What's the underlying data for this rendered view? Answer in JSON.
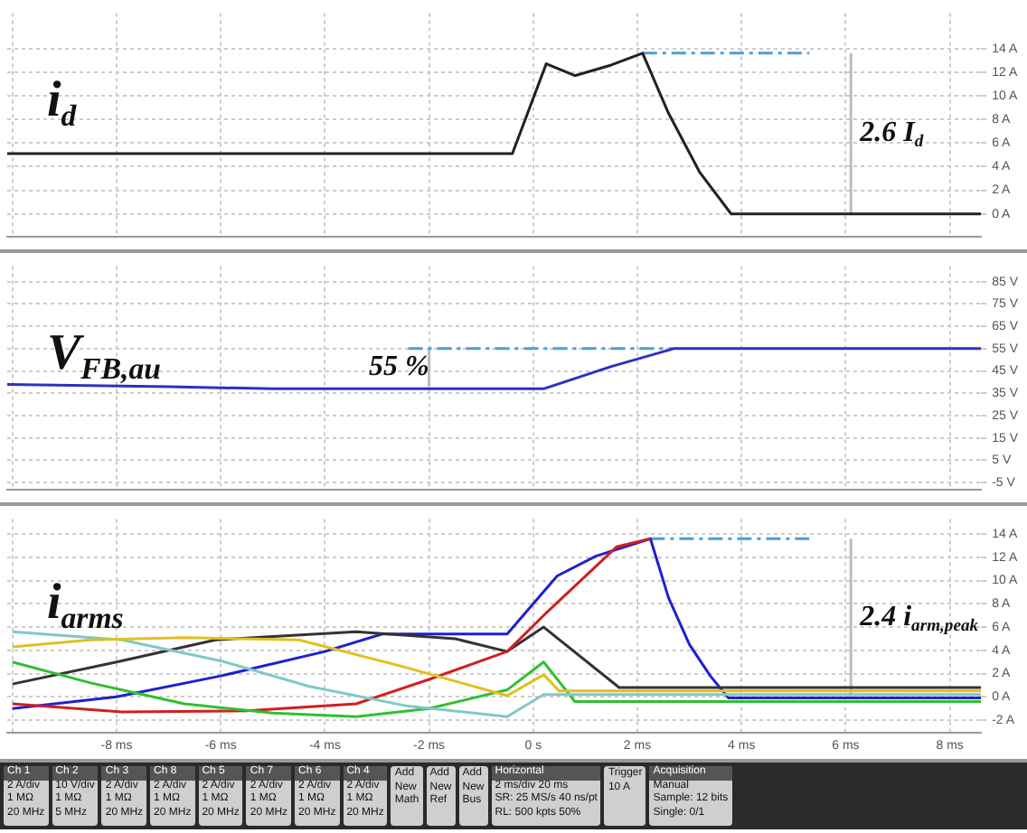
{
  "chart_data": [
    {
      "type": "line",
      "annotations": [
        "i$_{d}$",
        "2.6 I$_{d}$"
      ],
      "xlim": [
        -10.1,
        8.6
      ],
      "ylim": [
        -1.9,
        17
      ],
      "yticks": [
        {
          "value": 0,
          "label": "0 A"
        },
        {
          "value": 2,
          "label": "2 A"
        },
        {
          "value": 4,
          "label": "4 A"
        },
        {
          "value": 6,
          "label": "6 A"
        },
        {
          "value": 8,
          "label": "8 A"
        },
        {
          "value": 10,
          "label": "10 A"
        },
        {
          "value": 12,
          "label": "12 A"
        },
        {
          "value": 14,
          "label": "14 A"
        }
      ],
      "xticks": [
        -10,
        -8,
        -6,
        -4,
        -2,
        0,
        2,
        4,
        6,
        8
      ],
      "tick_labels": "y",
      "grid": true,
      "marker": "none",
      "line_style": "solid",
      "series": [
        {
          "color": "#222222",
          "x": [
            -10.1,
            -0.4,
            0.25,
            0.8,
            1.5,
            2.1,
            2.6,
            3.2,
            3.8,
            8.6
          ],
          "values": [
            5.1,
            5.1,
            12.7,
            11.7,
            12.6,
            13.6,
            8.5,
            3.5,
            0,
            0
          ]
        },
        {
          "color": "#4aa0d8",
          "line_style": "dashed",
          "x": [
            2.1,
            5.3
          ],
          "values": [
            13.6,
            13.6
          ]
        },
        {
          "color": "#bbbbbb",
          "x": [
            6.1,
            6.1
          ],
          "values": [
            0,
            13.6
          ]
        }
      ]
    },
    {
      "type": "line",
      "annotations": [
        "V$_{FB,au}$",
        "55 %"
      ],
      "xlim": [
        -10.1,
        8.6
      ],
      "ylim": [
        -8,
        92
      ],
      "yticks": [
        {
          "value": -5,
          "label": "-5 V"
        },
        {
          "value": 5,
          "label": "5 V"
        },
        {
          "value": 15,
          "label": "15 V"
        },
        {
          "value": 25,
          "label": "25 V"
        },
        {
          "value": 35,
          "label": "35 V"
        },
        {
          "value": 45,
          "label": "45 V"
        },
        {
          "value": 55,
          "label": "55 V"
        },
        {
          "value": 65,
          "label": "65 V"
        },
        {
          "value": 75,
          "label": "75 V"
        },
        {
          "value": 85,
          "label": "85 V"
        }
      ],
      "xticks": [
        -10,
        -8,
        -6,
        -4,
        -2,
        0,
        2,
        4,
        6,
        8
      ],
      "tick_labels": "y",
      "grid": true,
      "marker": "none",
      "line_style": "solid",
      "series": [
        {
          "color": "#3030c0",
          "x": [
            -10.1,
            -7,
            -5,
            -3,
            0.2,
            1.5,
            2.7,
            8.6
          ],
          "values": [
            39,
            38,
            37,
            37,
            37,
            47,
            55,
            55
          ]
        },
        {
          "color": "#4aa0d8",
          "line_style": "dashed",
          "x": [
            -2.4,
            2.7
          ],
          "values": [
            55,
            55
          ]
        },
        {
          "color": "#bbbbbb",
          "x": [
            -2,
            -2
          ],
          "values": [
            38,
            55
          ]
        }
      ]
    },
    {
      "type": "line",
      "annotations": [
        "i$_{arms}$",
        "2.4 i$_{arm,peak}$"
      ],
      "xlim": [
        -10.1,
        8.6
      ],
      "ylim": [
        -3.1,
        15.3
      ],
      "yticks": [
        {
          "value": -2,
          "label": "-2 A"
        },
        {
          "value": 0,
          "label": "0 A"
        },
        {
          "value": 2,
          "label": "2 A"
        },
        {
          "value": 4,
          "label": "4 A"
        },
        {
          "value": 6,
          "label": "6 A"
        },
        {
          "value": 8,
          "label": "8 A"
        },
        {
          "value": 10,
          "label": "10 A"
        },
        {
          "value": 12,
          "label": "12 A"
        },
        {
          "value": 14,
          "label": "14 A"
        }
      ],
      "xticks": [
        {
          "value": -10,
          "label": null
        },
        {
          "value": -8,
          "label": "-8 ms"
        },
        {
          "value": -6,
          "label": "-6 ms"
        },
        {
          "value": -4,
          "label": "-4 ms"
        },
        {
          "value": -2,
          "label": "-2 ms"
        },
        {
          "value": 0,
          "label": "0 s"
        },
        {
          "value": 2,
          "label": "2 ms"
        },
        {
          "value": 4,
          "label": "4 ms"
        },
        {
          "value": 6,
          "label": "6 ms"
        },
        {
          "value": 8,
          "label": "8 ms"
        }
      ],
      "grid": true,
      "marker": "none",
      "line_style": "solid",
      "series": [
        {
          "color": "#e0c020",
          "x": [
            -10,
            -8.5,
            -6.7,
            -4.5,
            -2.5,
            -0.5,
            0.2,
            0.5,
            8.6
          ],
          "values": [
            4.3,
            4.9,
            5.1,
            4.9,
            2.6,
            0.1,
            1.9,
            0.5,
            0.5
          ]
        },
        {
          "color": "#80c8c8",
          "x": [
            -10,
            -7.9,
            -6,
            -4.3,
            -2.4,
            -0.5,
            0.2,
            8.6
          ],
          "values": [
            5.6,
            4.9,
            3.1,
            0.9,
            -0.8,
            -1.7,
            0.2,
            0.2
          ]
        },
        {
          "color": "#30c030",
          "x": [
            -10,
            -8.5,
            -6.7,
            -5,
            -3.4,
            -2,
            -0.5,
            0.2,
            0.8,
            8.6
          ],
          "values": [
            3,
            1.2,
            -0.6,
            -1.4,
            -1.7,
            -1,
            0.6,
            3,
            -0.4,
            -0.4
          ]
        },
        {
          "color": "#d02020",
          "x": [
            -10,
            -7.9,
            -5.5,
            -3.4,
            -2,
            -0.5,
            0.2,
            1.6,
            2.25
          ],
          "values": [
            -0.6,
            -1.3,
            -1.2,
            -0.6,
            1.5,
            3.9,
            7,
            12.9,
            13.6
          ]
        },
        {
          "color": "#333333",
          "x": [
            -10,
            -8,
            -6.1,
            -3.4,
            -1.5,
            -0.5,
            0.2,
            1.65,
            8.6
          ],
          "values": [
            1.1,
            3,
            4.9,
            5.6,
            5,
            3.9,
            6,
            0.8,
            0.8
          ]
        },
        {
          "color": "#2020d0",
          "x": [
            -10,
            -8,
            -6,
            -4,
            -2.9,
            -0.5,
            0.46,
            1.2,
            2.25,
            2.6,
            3.0,
            3.4,
            3.75,
            8.6
          ],
          "values": [
            -1,
            0,
            1.8,
            3.9,
            5.4,
            5.4,
            10.4,
            12.1,
            13.6,
            8.5,
            4.5,
            1.8,
            -0.1,
            -0.1
          ]
        },
        {
          "color": "#4aa0d8",
          "line_style": "dashed",
          "x": [
            2.25,
            5.3
          ],
          "values": [
            13.6,
            13.6
          ]
        },
        {
          "color": "#bbbbbb",
          "x": [
            6.1,
            6.1
          ],
          "values": [
            0,
            13.6
          ]
        }
      ]
    },
    {
      "type": "other",
      "annotations": [
        "Ch 1\n2 A/div\n1 MΩ\n20 MHz",
        "Ch 2\n10 V/div\n1 MΩ\n5 MHz",
        "Ch 3\n2 A/div\n1 MΩ\n20 MHz",
        "Ch 8\n2 A/div\n1 MΩ\n20 MHz",
        "Ch 5\n2 A/div\n1 MΩ\n20 MHz",
        "Ch 7\n2 A/div\n1 MΩ\n20 MHz",
        "Ch 6\n2 A/div\n1 MΩ\n20 MHz",
        "Ch 4\n2 A/div\n1 MΩ\n20 MHz",
        "Add\nNew\nMath",
        "Add\nNew\nRef",
        "Add\nNew\nBus",
        "Horizontal\n2 ms/div  20 ms\nSR: 25 MS/s  40 ns/pt\nRL: 500 kpts  50%",
        "Trigger\n10 A",
        "Acquisition\nManual\nSample: 12 bits\nSingle: 0/1"
      ]
    }
  ]
}
